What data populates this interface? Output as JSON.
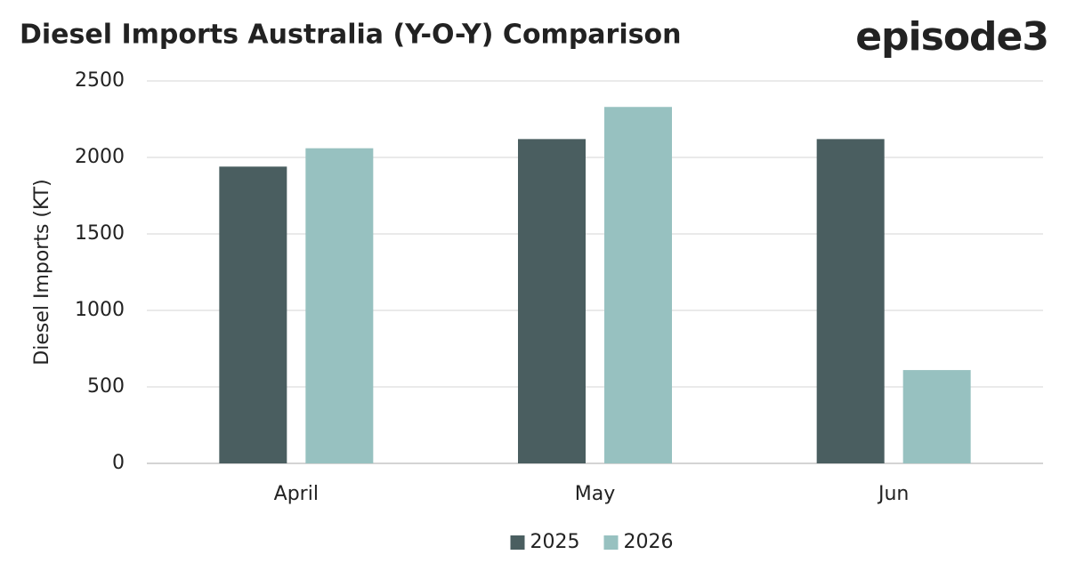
{
  "chart_data": {
    "type": "bar",
    "title": "Diesel Imports Australia (Y-O-Y) Comparison",
    "logo": "episode3",
    "y_label": "Diesel Imports (KT)",
    "categories": [
      "April",
      "May",
      "Jun"
    ],
    "series": [
      {
        "name": "2025",
        "color": "#4a5e60",
        "values": [
          1940,
          2120,
          2120
        ]
      },
      {
        "name": "2026",
        "color": "#97c1c0",
        "values": [
          2060,
          2330,
          610
        ]
      }
    ],
    "ylim": [
      0,
      2500
    ],
    "yticks": [
      0,
      500,
      1000,
      1500,
      2000,
      2500
    ],
    "grid": true,
    "legend": "bottom"
  }
}
